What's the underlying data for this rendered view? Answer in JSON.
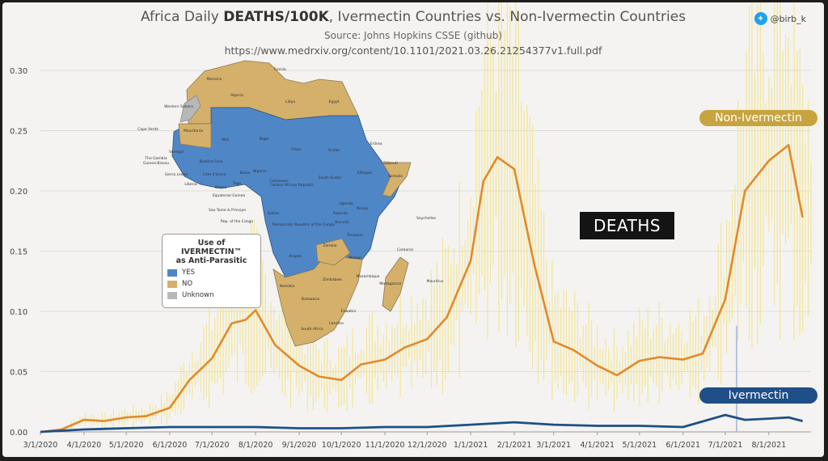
{
  "header": {
    "title_prefix": "Africa Daily ",
    "title_bold": "DEATHS/100K",
    "title_suffix": ", Ivermectin Countries vs. Non-Ivermectin Countries",
    "subtitle": "Source: Johns Hopkins CSSE (github)",
    "url": "https://www.medrxiv.org/content/10.1101/2021.03.26.21254377v1.full.pdf",
    "twitter_handle": "@birb_k"
  },
  "labels": {
    "non_ivermectin": "Non-Ivermectin",
    "ivermectin": "Ivermectin",
    "deaths": "DEATHS"
  },
  "map_legend": {
    "title_line1": "Use of IVERMECTIN™",
    "title_line2": "as Anti-Parasitic",
    "items": [
      {
        "label": "YES",
        "color": "#4f86c6"
      },
      {
        "label": "NO",
        "color": "#d4b06a"
      },
      {
        "label": "Unknown",
        "color": "#b8b8b8"
      }
    ]
  },
  "map_labels": [
    "Tunisia",
    "Morocco",
    "Algeria",
    "Libya",
    "Egypt",
    "Western Sahara",
    "Mauritania",
    "Mali",
    "Niger",
    "Chad",
    "Sudan",
    "Eritrea",
    "Cape Verde",
    "Senegal",
    "The Gambia",
    "Guinea-Bissau",
    "Burkina Faso",
    "Nigeria",
    "Ethiopia",
    "Somalia",
    "Djibouti",
    "Sierra Leone",
    "Liberia",
    "Cote d'Ivoire",
    "Ghana",
    "Togo",
    "Benin",
    "Cameroon",
    "Central African Republic",
    "South Sudan",
    "Equatorial Guinea",
    "Sao Tome & Principe",
    "Rep. of the Congo",
    "Gabon",
    "Democratic Republic of the Congo",
    "Uganda",
    "Kenya",
    "Rwanda",
    "Burundi",
    "Tanzania",
    "Seychelles",
    "Angola",
    "Zambia",
    "Malawi",
    "Comoros",
    "Mozambique",
    "Zimbabwe",
    "Namibia",
    "Botswana",
    "Madagascar",
    "Mauritius",
    "South Africa",
    "Lesotho",
    "Eswatini"
  ],
  "colors": {
    "non_ivermectin": "#e08a2c",
    "ivermectin": "#1f4f86",
    "daily_bars": "#f3e27a",
    "map_yes": "#4f86c6",
    "map_no": "#d4b06a",
    "map_unknown": "#b8b8b8"
  },
  "chart_data": {
    "type": "line",
    "title": "Africa Daily DEATHS/100K, Ivermectin Countries vs. Non-Ivermectin Countries",
    "xlabel": "",
    "ylabel": "",
    "ylim": [
      0,
      0.3
    ],
    "y_ticks": [
      "0.00",
      "0.05",
      "0.10",
      "0.15",
      "0.20",
      "0.25",
      "0.30"
    ],
    "x_ticks": [
      "3/1/2020",
      "4/1/2020",
      "5/1/2020",
      "6/1/2020",
      "7/1/2020",
      "8/1/2020",
      "9/1/2020",
      "10/1/2020",
      "11/1/2020",
      "12/1/2020",
      "1/1/2021",
      "2/1/2021",
      "3/1/2021",
      "4/1/2021",
      "5/1/2021",
      "6/1/2021",
      "7/1/2021",
      "8/1/2021"
    ],
    "grid": true,
    "series": [
      {
        "name": "Non-Ivermectin",
        "x": [
          "3/1/2020",
          "3/16/2020",
          "4/1/2020",
          "4/15/2020",
          "5/1/2020",
          "5/15/2020",
          "6/1/2020",
          "6/15/2020",
          "7/1/2020",
          "7/15/2020",
          "7/25/2020",
          "8/1/2020",
          "8/15/2020",
          "9/1/2020",
          "9/15/2020",
          "10/1/2020",
          "10/15/2020",
          "11/1/2020",
          "11/15/2020",
          "12/1/2020",
          "12/15/2020",
          "1/1/2021",
          "1/10/2021",
          "1/20/2021",
          "2/1/2021",
          "2/15/2021",
          "3/1/2021",
          "3/15/2021",
          "4/1/2021",
          "4/15/2021",
          "5/1/2021",
          "5/15/2021",
          "6/1/2021",
          "6/15/2021",
          "7/1/2021",
          "7/15/2021",
          "8/1/2021",
          "8/15/2021",
          "8/25/2021"
        ],
        "values": [
          0.0,
          0.002,
          0.01,
          0.009,
          0.012,
          0.013,
          0.02,
          0.043,
          0.061,
          0.09,
          0.093,
          0.101,
          0.072,
          0.055,
          0.046,
          0.043,
          0.056,
          0.06,
          0.07,
          0.077,
          0.095,
          0.142,
          0.208,
          0.228,
          0.218,
          0.14,
          0.075,
          0.068,
          0.055,
          0.047,
          0.059,
          0.062,
          0.06,
          0.065,
          0.11,
          0.2,
          0.225,
          0.238,
          0.178
        ]
      },
      {
        "name": "Ivermectin",
        "x": [
          "3/1/2020",
          "4/1/2020",
          "5/1/2020",
          "6/1/2020",
          "7/1/2020",
          "8/1/2020",
          "9/1/2020",
          "10/1/2020",
          "11/1/2020",
          "12/1/2020",
          "1/1/2021",
          "2/1/2021",
          "3/1/2021",
          "4/1/2021",
          "5/1/2021",
          "6/1/2021",
          "7/1/2021",
          "7/15/2021",
          "8/1/2021",
          "8/15/2021",
          "8/25/2021"
        ],
        "values": [
          0.0,
          0.002,
          0.003,
          0.004,
          0.004,
          0.004,
          0.003,
          0.003,
          0.004,
          0.004,
          0.006,
          0.008,
          0.006,
          0.005,
          0.005,
          0.004,
          0.014,
          0.01,
          0.011,
          0.012,
          0.009
        ]
      }
    ]
  }
}
